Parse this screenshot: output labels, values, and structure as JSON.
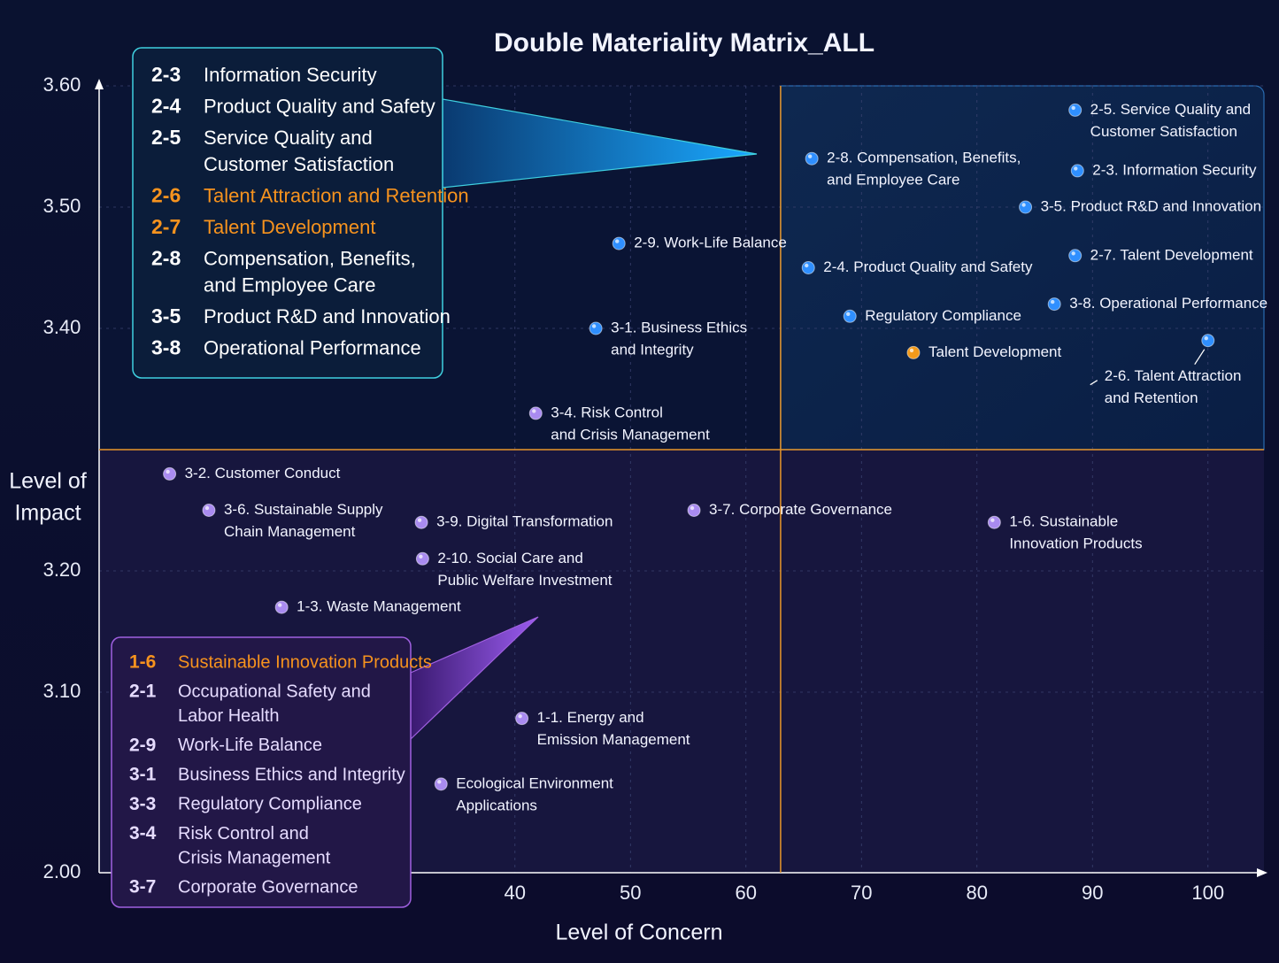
{
  "chart_data": {
    "type": "scatter",
    "title": "Double Materiality Matrix_ALL",
    "x_label": "Level of Concern",
    "y_label": [
      "Level of",
      "Impact"
    ],
    "xlim": [
      4,
      105
    ],
    "xticks": [
      40,
      50,
      60,
      70,
      80,
      90,
      100
    ],
    "ylim": [
      2.0,
      3.6
    ],
    "yticks": [
      {
        "value": 2.0,
        "label": "2.00"
      },
      {
        "value": 3.1,
        "label": "3.10"
      },
      {
        "value": 3.2,
        "label": "3.20"
      },
      {
        "value": 3.4,
        "label": "3.40"
      },
      {
        "value": 3.5,
        "label": "3.50"
      },
      {
        "value": 3.6,
        "label": "3.60"
      }
    ],
    "y_axis_break": true,
    "grid": true,
    "quadrant_lines": {
      "x": 63,
      "y": 3.3,
      "color": "#e8962a"
    },
    "points": [
      {
        "label": [
          "2-5. Service Quality and",
          "Customer Satisfaction"
        ],
        "x": 88.5,
        "y": 3.58,
        "color": "#2f8fff"
      },
      {
        "label": [
          "2-8. Compensation, Benefits,",
          "and Employee Care"
        ],
        "x": 65.7,
        "y": 3.54,
        "color": "#2f8fff"
      },
      {
        "label": [
          "2-3. Information Security"
        ],
        "x": 88.7,
        "y": 3.53,
        "color": "#2f8fff"
      },
      {
        "label": [
          "3-5. Product R&D and Innovation"
        ],
        "x": 84.2,
        "y": 3.5,
        "color": "#2f8fff"
      },
      {
        "label": [
          "2-9. Work-Life Balance"
        ],
        "x": 49.0,
        "y": 3.47,
        "color": "#2f8fff"
      },
      {
        "label": [
          "2-7. Talent Development"
        ],
        "x": 88.5,
        "y": 3.46,
        "color": "#2f8fff"
      },
      {
        "label": [
          "2-4. Product Quality and Safety"
        ],
        "x": 65.4,
        "y": 3.45,
        "color": "#2f8fff"
      },
      {
        "label": [
          "3-8. Operational Performance"
        ],
        "x": 86.7,
        "y": 3.42,
        "color": "#2f8fff"
      },
      {
        "label": [
          "Regulatory Compliance"
        ],
        "x": 69.0,
        "y": 3.41,
        "color": "#2f8fff"
      },
      {
        "label": [
          "3-1. Business Ethics",
          "and Integrity"
        ],
        "x": 47.0,
        "y": 3.4,
        "color": "#2f8fff"
      },
      {
        "label": [
          "2-6. Talent Attraction",
          "and Retention"
        ],
        "x": 100,
        "y": 3.39,
        "color": "#2f8fff"
      },
      {
        "label": [
          "Talent Development"
        ],
        "x": 74.5,
        "y": 3.38,
        "color": "#f39a1a"
      },
      {
        "label": [
          "3-4. Risk Control",
          "and Crisis Management"
        ],
        "x": 41.8,
        "y": 3.33,
        "color": "#a98bf0"
      },
      {
        "label": [
          "3-2. Customer Conduct"
        ],
        "x": 10.1,
        "y": 3.28,
        "color": "#a98bf0"
      },
      {
        "label": [
          "3-6. Sustainable Supply",
          "Chain Management"
        ],
        "x": 13.5,
        "y": 3.25,
        "color": "#a98bf0"
      },
      {
        "label": [
          "3-9. Digital Transformation"
        ],
        "x": 31.9,
        "y": 3.24,
        "color": "#a98bf0"
      },
      {
        "label": [
          "3-7. Corporate Governance"
        ],
        "x": 55.5,
        "y": 3.25,
        "color": "#a98bf0"
      },
      {
        "label": [
          "1-6. Sustainable",
          "Innovation Products"
        ],
        "x": 81.5,
        "y": 3.24,
        "color": "#a98bf0"
      },
      {
        "label": [
          "2-10. Social Care and",
          "Public Welfare Investment"
        ],
        "x": 32.0,
        "y": 3.21,
        "color": "#a98bf0"
      },
      {
        "label": [
          "1-3. Waste Management"
        ],
        "x": 19.8,
        "y": 3.17,
        "color": "#a98bf0"
      },
      {
        "label": [
          "1-1. Energy and",
          "Emission Management"
        ],
        "x": 40.6,
        "y": 2.94,
        "color": "#a98bf0"
      },
      {
        "label": [
          "Ecological Environment",
          "Applications"
        ],
        "x": 33.6,
        "y": 2.54,
        "color": "#a98bf0"
      }
    ],
    "callouts": [
      {
        "border": "#3fd0e0",
        "items": [
          {
            "code": "2-3",
            "text": [
              "Information Security"
            ]
          },
          {
            "code": "2-4",
            "text": [
              "Product Quality and Safety"
            ]
          },
          {
            "code": "2-5",
            "text": [
              "Service Quality and",
              "Customer Satisfaction"
            ]
          },
          {
            "code": "2-6",
            "text": [
              "Talent Attraction and Retention"
            ],
            "highlight": true
          },
          {
            "code": "2-7",
            "text": [
              "Talent Development"
            ],
            "highlight": true
          },
          {
            "code": "2-8",
            "text": [
              "Compensation, Benefits,",
              "and Employee Care"
            ]
          },
          {
            "code": "3-5",
            "text": [
              "Product R&D and Innovation"
            ]
          },
          {
            "code": "3-8",
            "text": [
              "Operational Performance"
            ]
          }
        ]
      },
      {
        "border": "#a060e0",
        "items": [
          {
            "code": "1-6",
            "text": [
              "Sustainable Innovation Products"
            ],
            "highlight": true
          },
          {
            "code": "2-1",
            "text": [
              "Occupational Safety and",
              "Labor Health"
            ]
          },
          {
            "code": "2-9",
            "text": [
              "Work-Life Balance"
            ]
          },
          {
            "code": "3-1",
            "text": [
              "Business Ethics and Integrity"
            ]
          },
          {
            "code": "3-3",
            "text": [
              "Regulatory Compliance"
            ]
          },
          {
            "code": "3-4",
            "text": [
              "Risk Control and",
              "Crisis Management"
            ]
          },
          {
            "code": "3-7",
            "text": [
              "Corporate Governance"
            ]
          }
        ]
      }
    ]
  }
}
